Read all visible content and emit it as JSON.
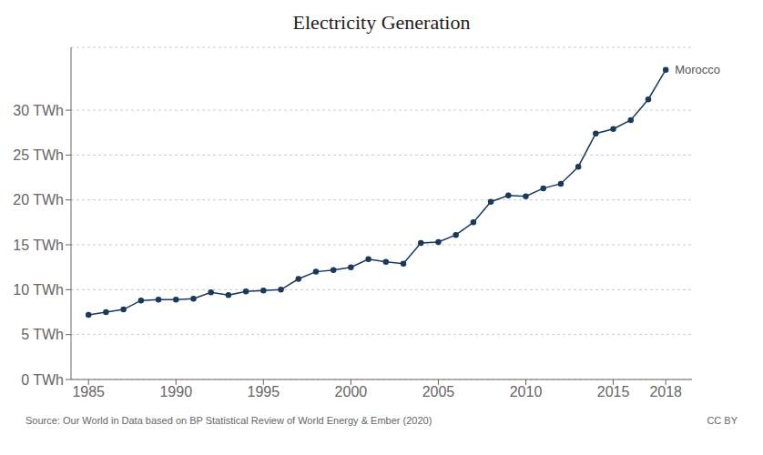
{
  "chart_data": {
    "type": "line",
    "title": "Electricity Generation",
    "x": [
      1985,
      1986,
      1987,
      1988,
      1989,
      1990,
      1991,
      1992,
      1993,
      1994,
      1995,
      1996,
      1997,
      1998,
      1999,
      2000,
      2001,
      2002,
      2003,
      2004,
      2005,
      2006,
      2007,
      2008,
      2009,
      2010,
      2011,
      2012,
      2013,
      2014,
      2015,
      2016,
      2017,
      2018
    ],
    "values": [
      7.2,
      7.5,
      7.8,
      8.8,
      8.9,
      8.9,
      9.0,
      9.7,
      9.4,
      9.8,
      9.9,
      10.0,
      11.2,
      12.0,
      12.2,
      12.5,
      13.4,
      13.1,
      12.9,
      15.2,
      15.3,
      16.1,
      17.5,
      19.8,
      20.5,
      20.4,
      21.3,
      21.8,
      23.7,
      27.4,
      27.9,
      28.9,
      31.2,
      34.5
    ],
    "color": "#1a3a5c",
    "marker": "circle",
    "xlim": [
      1984,
      2019.5
    ],
    "xticks": [
      1985,
      1990,
      1995,
      2000,
      2005,
      2010,
      2015,
      2018
    ],
    "ylim": [
      0,
      37
    ],
    "yticks": [
      {
        "value": 0,
        "label": "0 TWh"
      },
      {
        "value": 5,
        "label": "5 TWh"
      },
      {
        "value": 10,
        "label": "10 TWh"
      },
      {
        "value": 15,
        "label": "15 TWh"
      },
      {
        "value": 20,
        "label": "20 TWh"
      },
      {
        "value": 25,
        "label": "25 TWh"
      },
      {
        "value": 30,
        "label": "30 TWh"
      }
    ],
    "grid": "y",
    "annotations": [
      {
        "text": "Morocco",
        "x": 2018,
        "y": 34.5
      }
    ],
    "source": "Source: Our World in Data based on BP Statistical Review of World Energy & Ember (2020)",
    "credit": "CC BY"
  }
}
